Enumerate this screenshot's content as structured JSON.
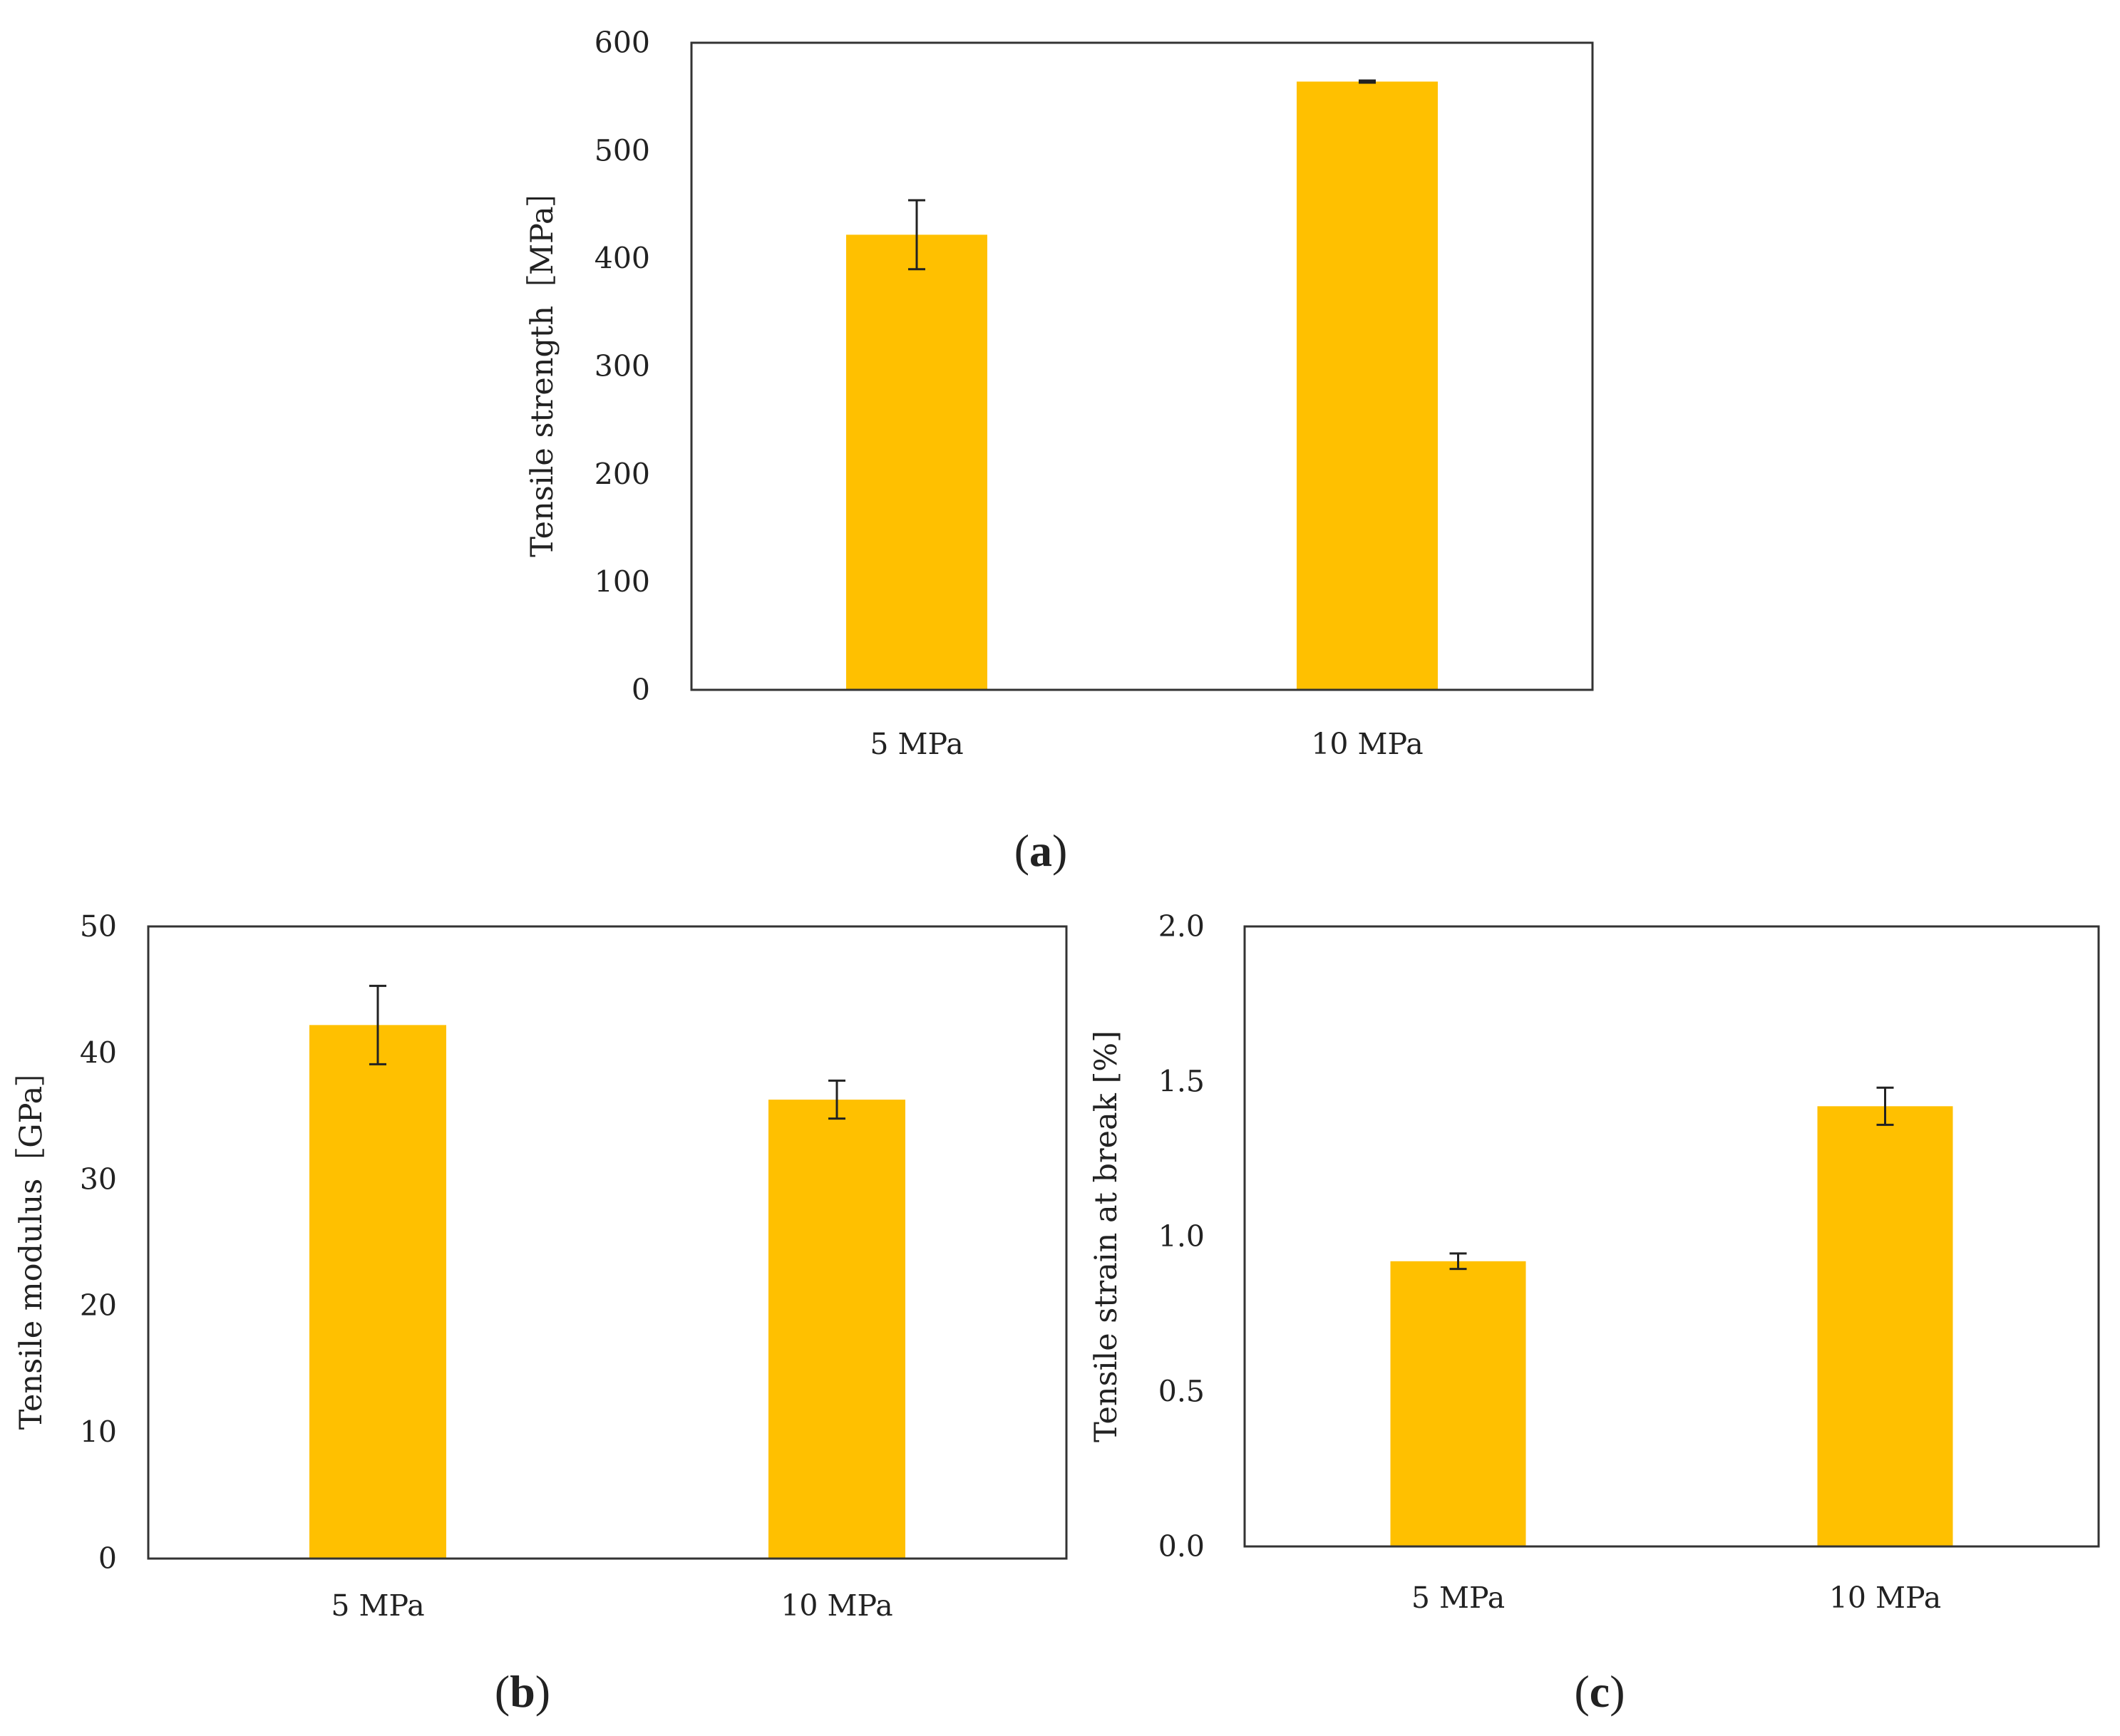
{
  "chart_data": [
    {
      "type": "bar",
      "panel": "a",
      "panel_label": [
        "(",
        "a",
        ")"
      ],
      "categories": [
        "5 MPa",
        "10 MPa"
      ],
      "values": [
        422,
        564
      ],
      "errors": [
        32,
        1
      ],
      "ylabel": "Tensile strength［MPa］",
      "xlabel": "",
      "title": "",
      "ylim": [
        0,
        600
      ],
      "yticks": [
        0,
        100,
        200,
        300,
        400,
        500,
        600
      ],
      "ytick_labels": [
        "0",
        "100",
        "200",
        "300",
        "400",
        "500",
        "600"
      ],
      "bar_color": "#FFC000",
      "grid": false
    },
    {
      "type": "bar",
      "panel": "b",
      "panel_label": [
        "(",
        "b",
        ")"
      ],
      "categories": [
        "5 MPa",
        "10 MPa"
      ],
      "values": [
        42.2,
        36.3
      ],
      "errors": [
        3.1,
        1.5
      ],
      "ylabel": "Tensile modulus［GPa］",
      "xlabel": "",
      "title": "",
      "ylim": [
        0,
        50
      ],
      "yticks": [
        0,
        10,
        20,
        30,
        40,
        50
      ],
      "ytick_labels": [
        "0",
        "10",
        "20",
        "30",
        "40",
        "50"
      ],
      "bar_color": "#FFC000",
      "grid": false
    },
    {
      "type": "bar",
      "panel": "c",
      "panel_label": [
        "(",
        "c",
        ")"
      ],
      "categories": [
        "5 MPa",
        "10 MPa"
      ],
      "values": [
        0.92,
        1.42
      ],
      "errors": [
        0.025,
        0.06
      ],
      "ylabel": "Tensile strain at break [%]",
      "xlabel": "",
      "title": "",
      "ylim": [
        0,
        2.0
      ],
      "yticks": [
        0,
        0.5,
        1.0,
        1.5,
        2.0
      ],
      "ytick_labels": [
        "0.0",
        "0.5",
        "1.0",
        "1.5",
        "2.0"
      ],
      "bar_color": "#FFC000",
      "grid": false
    }
  ]
}
